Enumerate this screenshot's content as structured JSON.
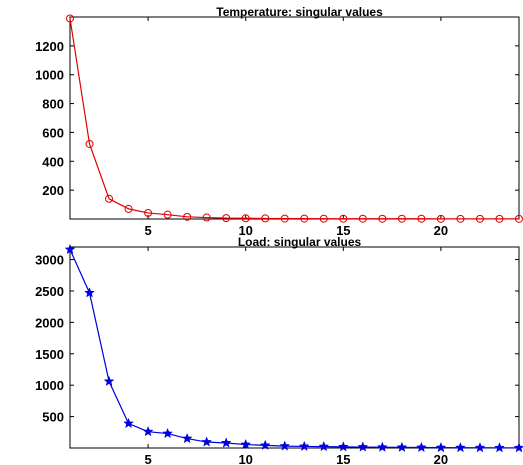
{
  "chart_data": [
    {
      "type": "line",
      "title": "Temperature: singular values",
      "xlabel": "",
      "ylabel": "",
      "xlim": [
        1,
        24
      ],
      "ylim": [
        0,
        1400
      ],
      "xticks": [
        5,
        10,
        15,
        20
      ],
      "yticks": [
        200,
        400,
        600,
        800,
        1000,
        1200
      ],
      "marker": "circle",
      "color": "#e00000",
      "grid": false,
      "series": [
        {
          "x": [
            1,
            2,
            3,
            4,
            5,
            6,
            7,
            8,
            9,
            10,
            11,
            12,
            13,
            14,
            15,
            16,
            17,
            18,
            19,
            20,
            21,
            22,
            23,
            24
          ],
          "values": [
            1390,
            520,
            140,
            70,
            42,
            30,
            15,
            10,
            6,
            5,
            4,
            3,
            3,
            2,
            2,
            2,
            2,
            2,
            2,
            1,
            1,
            1,
            1,
            1
          ]
        }
      ]
    },
    {
      "type": "line",
      "title": "Load: singular values",
      "xlabel": "",
      "ylabel": "",
      "xlim": [
        1,
        24
      ],
      "ylim": [
        0,
        3200
      ],
      "xticks": [
        5,
        10,
        15,
        20
      ],
      "yticks": [
        500,
        1000,
        1500,
        2000,
        2500,
        3000
      ],
      "marker": "star",
      "color": "#0000e0",
      "grid": false,
      "series": [
        {
          "x": [
            1,
            2,
            3,
            4,
            5,
            6,
            7,
            8,
            9,
            10,
            11,
            12,
            13,
            14,
            15,
            16,
            17,
            18,
            19,
            20,
            21,
            22,
            23,
            24
          ],
          "values": [
            3160,
            2470,
            1060,
            390,
            260,
            230,
            150,
            95,
            80,
            55,
            42,
            30,
            25,
            22,
            18,
            15,
            12,
            10,
            8,
            6,
            5,
            4,
            3,
            3
          ]
        }
      ]
    }
  ]
}
